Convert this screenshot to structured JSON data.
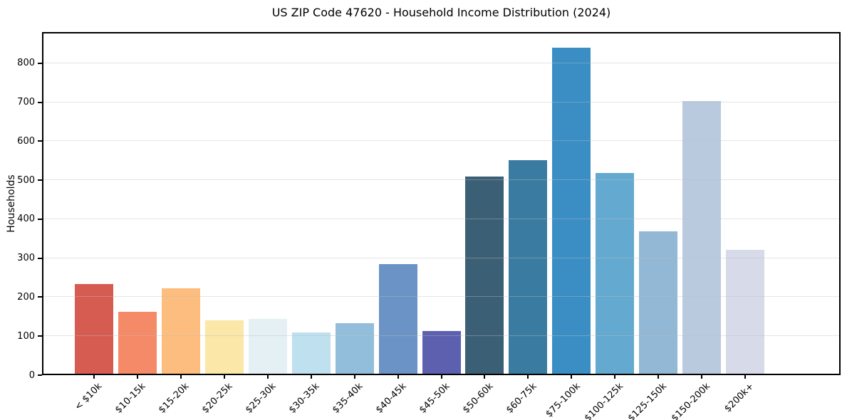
{
  "chart_data": {
    "type": "bar",
    "title": "US ZIP Code 47620 - Household Income Distribution (2024)",
    "xlabel": "",
    "ylabel": "Households",
    "categories": [
      "< $10k",
      "$10-15k",
      "$15-20k",
      "$20-25k",
      "$25-30k",
      "$30-35k",
      "$35-40k",
      "$40-45k",
      "$45-50k",
      "$50-60k",
      "$60-75k",
      "$75-100k",
      "$100-125k",
      "$125-150k",
      "$150-200k",
      "$200k+"
    ],
    "values": [
      233,
      163,
      222,
      140,
      145,
      110,
      134,
      285,
      114,
      510,
      551,
      839,
      519,
      369,
      703,
      321
    ],
    "bar_colors": [
      "#d65c52",
      "#f58a68",
      "#fcbd7f",
      "#fbe7a8",
      "#e4f0f4",
      "#bfe0ee",
      "#93bedb",
      "#6b93c5",
      "#5c60ae",
      "#3b6075",
      "#3a7ba1",
      "#3a8ec4",
      "#64a9cf",
      "#92b8d6",
      "#b9cade",
      "#d7dae8"
    ],
    "ylim": [
      0,
      880
    ],
    "yticks": [
      0,
      100,
      200,
      300,
      400,
      500,
      600,
      700,
      800
    ],
    "grid": "horizontal",
    "grid_color": "#e5e5e5",
    "legend": "none",
    "background": "#ffffff",
    "spine_color": "#000000"
  }
}
